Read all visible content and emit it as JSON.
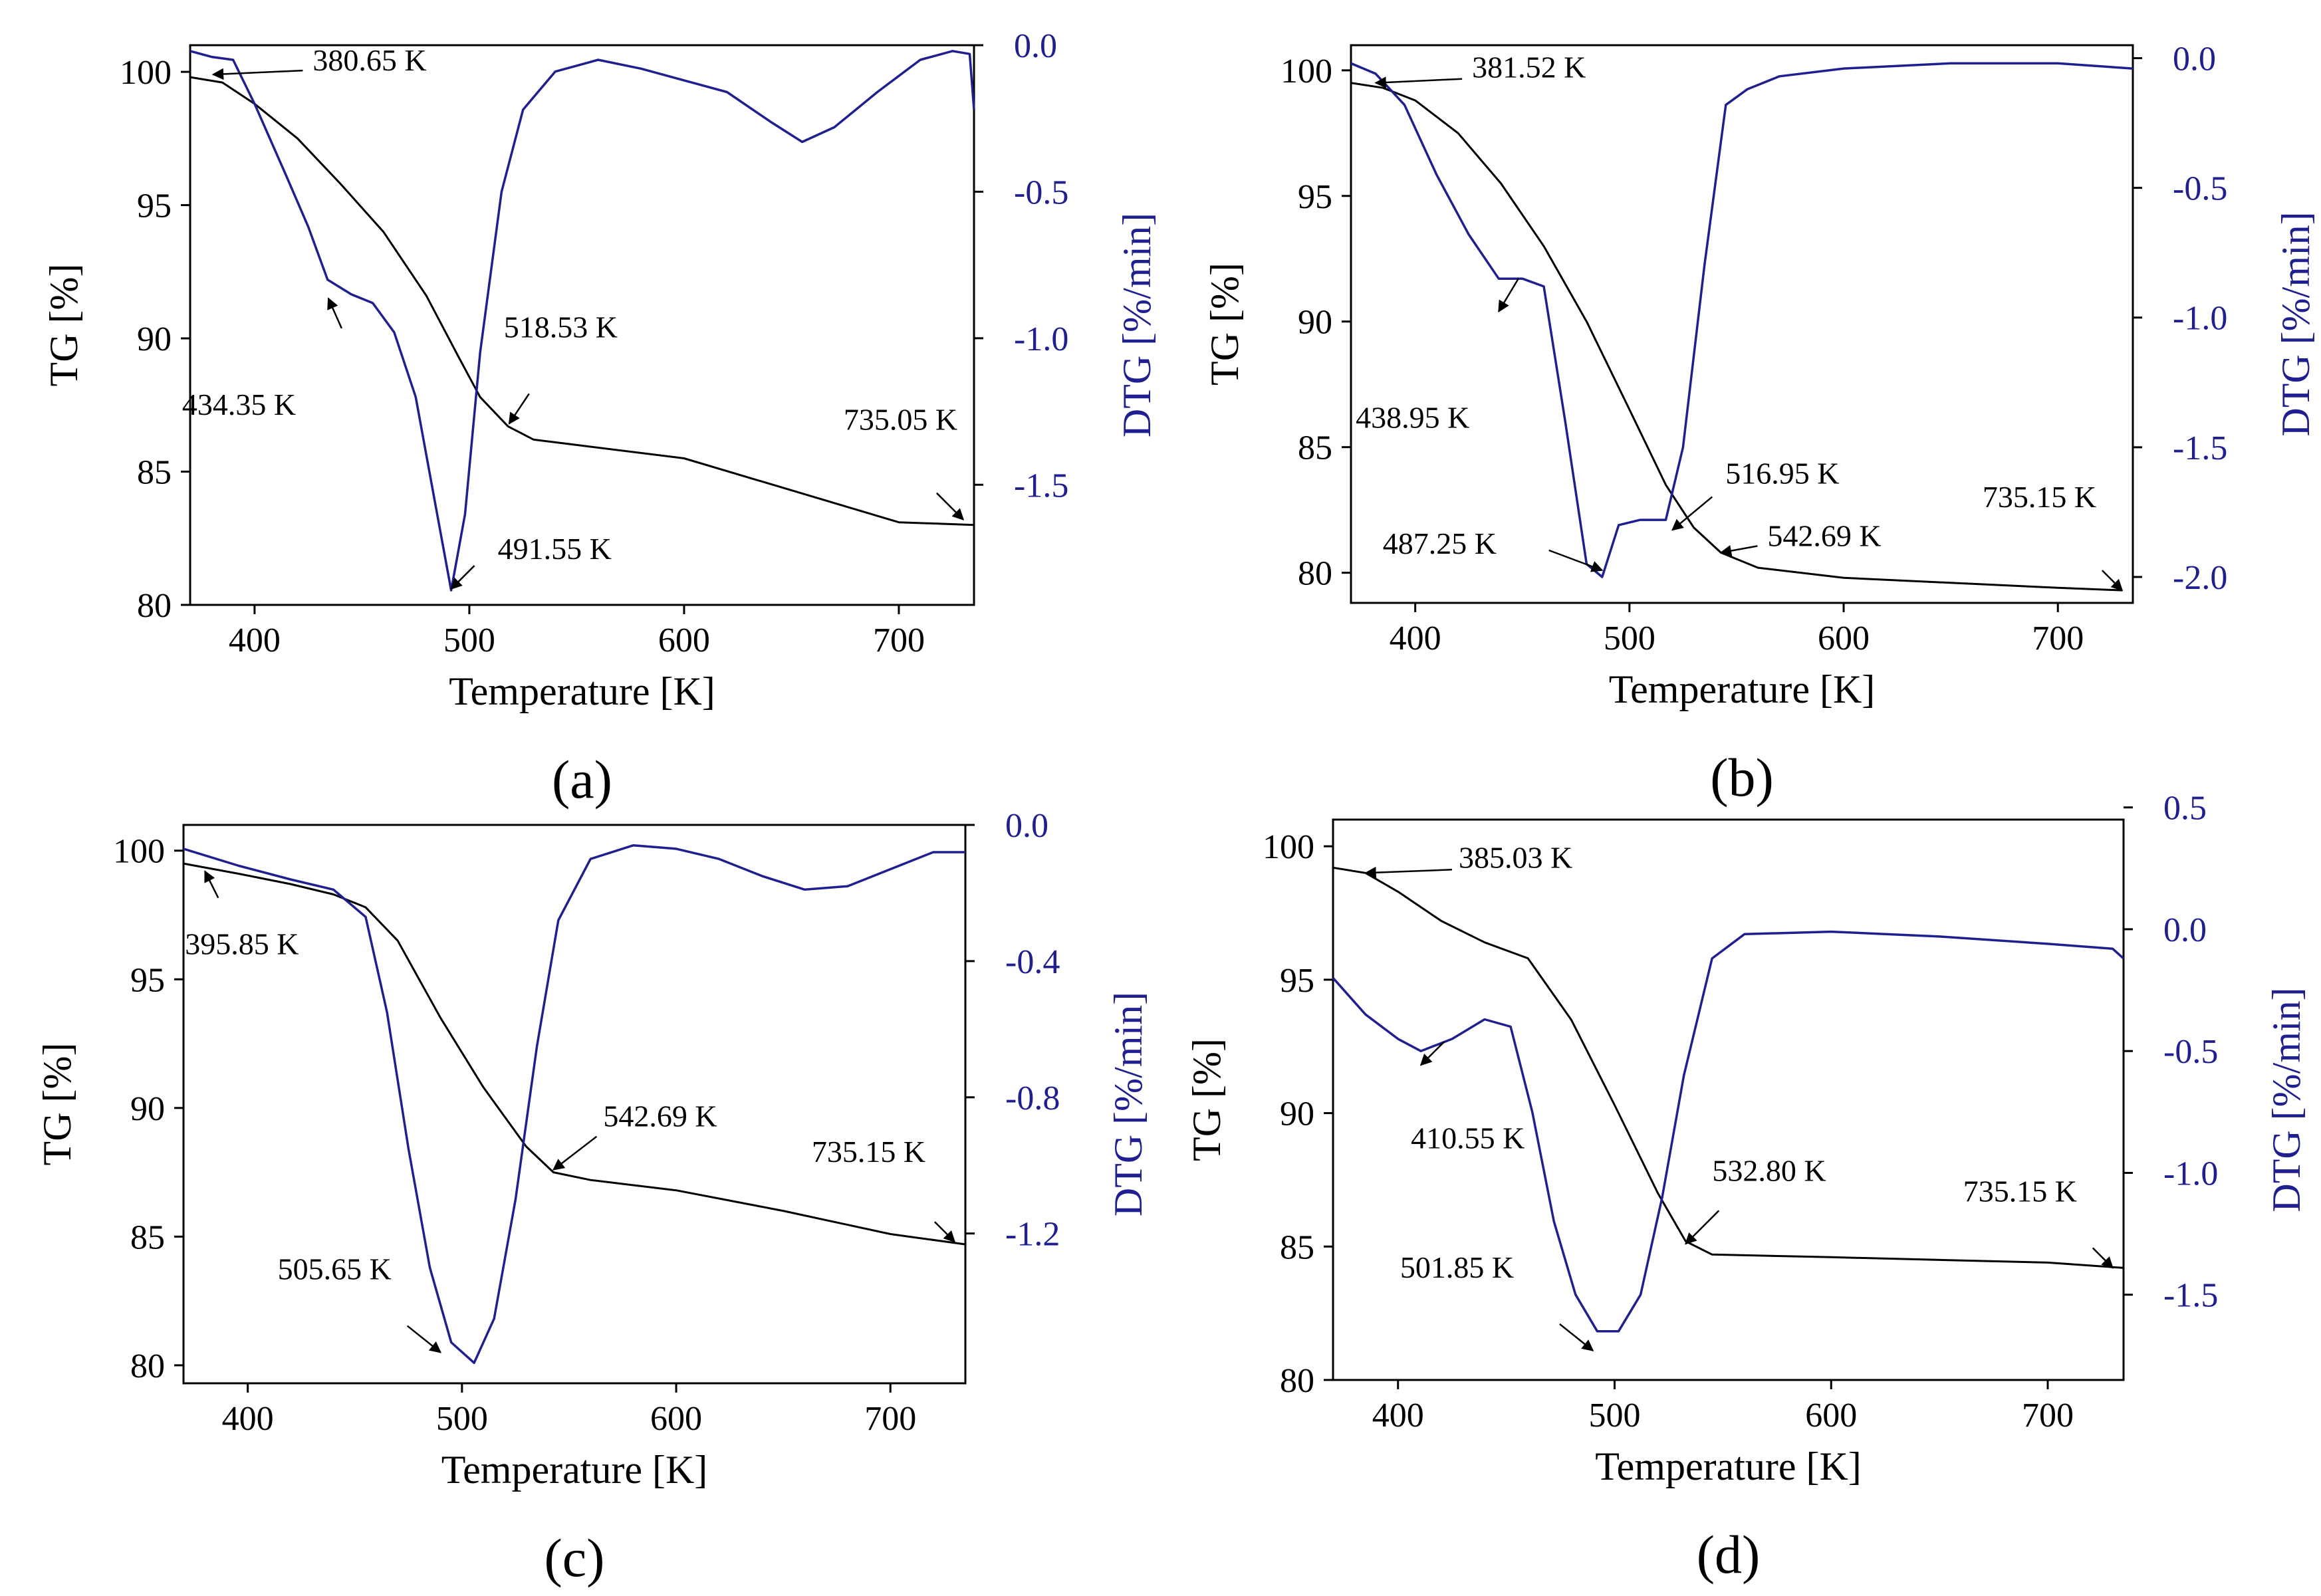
{
  "colors": {
    "tg": "#000000",
    "dtg": "#1f1f8f",
    "axis": "#000000"
  },
  "chart_data": [
    {
      "type": "line",
      "panel_label": "(a)",
      "xlabel": "Temperature [K]",
      "ylabel_left": "TG [%]",
      "ylabel_right": "DTG [%/min]",
      "xlim": [
        370,
        735
      ],
      "ylim_left": [
        80,
        101
      ],
      "ylim_right": [
        -1.91,
        0.0
      ],
      "xticks": [
        400,
        500,
        600,
        700
      ],
      "xtick_labels": [
        "400",
        "500",
        "600",
        "700"
      ],
      "yticks_left": [
        80,
        85,
        90,
        95,
        100
      ],
      "ytick_labels_left": [
        "80",
        "85",
        "90",
        "95",
        "100"
      ],
      "yticks_right": [
        -1.5,
        -1.0,
        -0.5,
        0.0
      ],
      "ytick_labels_right": [
        "-1.5",
        "-1.0",
        "-0.5",
        "0.0"
      ],
      "series": [
        {
          "name": "TG",
          "axis": "left",
          "x": [
            370,
            385,
            400,
            420,
            440,
            460,
            480,
            495,
            505,
            518,
            530,
            550,
            600,
            650,
            700,
            735
          ],
          "y": [
            99.8,
            99.6,
            98.8,
            97.5,
            95.8,
            94.0,
            91.6,
            89.3,
            87.8,
            86.7,
            86.2,
            86.0,
            85.5,
            84.3,
            83.1,
            83.0
          ]
        },
        {
          "name": "DTG",
          "axis": "right",
          "x": [
            370,
            380,
            390,
            400,
            415,
            425,
            434,
            445,
            455,
            465,
            475,
            485,
            491.55,
            498,
            505,
            515,
            525,
            540,
            560,
            580,
            600,
            620,
            640,
            655,
            670,
            690,
            710,
            725,
            733,
            735
          ],
          "y": [
            -0.02,
            -0.04,
            -0.05,
            -0.2,
            -0.45,
            -0.62,
            -0.8,
            -0.85,
            -0.88,
            -0.98,
            -1.2,
            -1.6,
            -1.86,
            -1.6,
            -1.05,
            -0.5,
            -0.22,
            -0.09,
            -0.05,
            -0.08,
            -0.12,
            -0.16,
            -0.26,
            -0.33,
            -0.28,
            -0.16,
            -0.05,
            -0.02,
            -0.03,
            -0.22
          ]
        }
      ],
      "annotations": [
        {
          "text": "380.65 K",
          "x": 380.65,
          "y": 99.9,
          "axis": "left"
        },
        {
          "text": "434.35 K",
          "x": 434.35,
          "y": 91.5,
          "axis": "left"
        },
        {
          "text": "518.53 K",
          "x": 518.53,
          "y": 86.8,
          "axis": "left"
        },
        {
          "text": "491.55 K",
          "x": 491.55,
          "y": 80.6,
          "axis": "left"
        },
        {
          "text": "735.05 K",
          "x": 730,
          "y": 83.2,
          "axis": "left"
        }
      ]
    },
    {
      "type": "line",
      "panel_label": "(b)",
      "xlabel": "Temperature [K]",
      "ylabel_left": "TG [%]",
      "ylabel_right": "DTG [%/min]",
      "xlim": [
        370,
        735
      ],
      "ylim_left": [
        78.8,
        101
      ],
      "ylim_right": [
        -2.1,
        0.05
      ],
      "xticks": [
        400,
        500,
        600,
        700
      ],
      "xtick_labels": [
        "400",
        "500",
        "600",
        "700"
      ],
      "yticks_left": [
        80,
        85,
        90,
        95,
        100
      ],
      "ytick_labels_left": [
        "80",
        "85",
        "90",
        "95",
        "100"
      ],
      "yticks_right": [
        -2.0,
        -1.5,
        -1.0,
        -0.5,
        0.0
      ],
      "ytick_labels_right": [
        "-2.0",
        "-1.5",
        "-1.0",
        "-0.5",
        "0.0"
      ],
      "series": [
        {
          "name": "TG",
          "axis": "left",
          "x": [
            370,
            385,
            400,
            420,
            440,
            460,
            480,
            500,
            516.95,
            530,
            542.69,
            560,
            600,
            650,
            700,
            730
          ],
          "y": [
            99.5,
            99.3,
            98.8,
            97.5,
            95.5,
            93.0,
            90.0,
            86.5,
            83.5,
            81.8,
            80.8,
            80.2,
            79.8,
            79.6,
            79.4,
            79.3
          ]
        },
        {
          "name": "DTG",
          "axis": "right",
          "x": [
            370,
            381.52,
            395,
            410,
            425,
            438.95,
            450,
            460,
            470,
            480,
            487.25,
            495,
            505,
            516.95,
            525,
            535,
            545,
            555,
            570,
            600,
            650,
            700,
            735
          ],
          "y": [
            -0.02,
            -0.06,
            -0.18,
            -0.45,
            -0.68,
            -0.85,
            -0.85,
            -0.88,
            -1.4,
            -1.95,
            -2.0,
            -1.8,
            -1.78,
            -1.78,
            -1.5,
            -0.8,
            -0.18,
            -0.12,
            -0.07,
            -0.04,
            -0.02,
            -0.02,
            -0.04
          ]
        }
      ],
      "annotations": [
        {
          "text": "381.52 K",
          "x": 381.52,
          "y": 99.5,
          "axis": "left"
        },
        {
          "text": "438.95 K",
          "x": 438.95,
          "y": 90.4,
          "axis": "left"
        },
        {
          "text": "516.95 K",
          "x": 520,
          "y": 81.7,
          "axis": "left"
        },
        {
          "text": "542.69 K",
          "x": 542.69,
          "y": 80.8,
          "axis": "left"
        },
        {
          "text": "487.25 K",
          "x": 487.25,
          "y": 80.1,
          "axis": "left"
        },
        {
          "text": "735.15 K",
          "x": 730,
          "y": 79.3,
          "axis": "left"
        }
      ]
    },
    {
      "type": "line",
      "panel_label": "(c)",
      "xlabel": "Temperature [K]",
      "ylabel_left": "TG [%]",
      "ylabel_right": "DTG [%/min]",
      "xlim": [
        370,
        735
      ],
      "ylim_left": [
        79.3,
        101
      ],
      "ylim_right": [
        -1.64,
        0.0
      ],
      "xticks": [
        400,
        500,
        600,
        700
      ],
      "xtick_labels": [
        "400",
        "500",
        "600",
        "700"
      ],
      "yticks_left": [
        80,
        85,
        90,
        95,
        100
      ],
      "ytick_labels_left": [
        "80",
        "85",
        "90",
        "95",
        "100"
      ],
      "yticks_right": [
        -1.2,
        -0.8,
        -0.4,
        0.0
      ],
      "ytick_labels_right": [
        "-1.2",
        "-0.8",
        "-0.4",
        "0.0"
      ],
      "series": [
        {
          "name": "TG",
          "axis": "left",
          "x": [
            370,
            395.85,
            420,
            440,
            455,
            470,
            490,
            510,
            530,
            542.69,
            560,
            600,
            650,
            700,
            735
          ],
          "y": [
            99.5,
            99.1,
            98.7,
            98.3,
            97.8,
            96.5,
            93.5,
            90.8,
            88.5,
            87.5,
            87.2,
            86.8,
            86.0,
            85.1,
            84.7
          ]
        },
        {
          "name": "DTG",
          "axis": "right",
          "x": [
            370,
            395.85,
            420,
            440,
            455,
            465,
            475,
            485,
            495,
            505.65,
            515,
            525,
            535,
            545,
            560,
            580,
            600,
            620,
            640,
            660,
            680,
            700,
            720,
            735
          ],
          "y": [
            -0.07,
            -0.12,
            -0.16,
            -0.19,
            -0.27,
            -0.55,
            -0.95,
            -1.3,
            -1.52,
            -1.58,
            -1.45,
            -1.1,
            -0.65,
            -0.28,
            -0.1,
            -0.06,
            -0.07,
            -0.1,
            -0.15,
            -0.19,
            -0.18,
            -0.13,
            -0.08,
            -0.08
          ]
        }
      ],
      "annotations": [
        {
          "text": "395.85 K",
          "x": 380,
          "y": 99.2,
          "axis": "left"
        },
        {
          "text": "542.69 K",
          "x": 542.69,
          "y": 87.6,
          "axis": "left"
        },
        {
          "text": "735.15 K",
          "x": 730,
          "y": 84.8,
          "axis": "left"
        },
        {
          "text": "505.65 K",
          "x": 490,
          "y": 80.5,
          "axis": "left"
        }
      ]
    },
    {
      "type": "line",
      "panel_label": "(d)",
      "xlabel": "Temperature [K]",
      "ylabel_left": "TG [%]",
      "ylabel_right": "DTG [%/min]",
      "xlim": [
        370,
        735
      ],
      "ylim_left": [
        80,
        101
      ],
      "ylim_right": [
        -1.85,
        0.45
      ],
      "xticks": [
        400,
        500,
        600,
        700
      ],
      "xtick_labels": [
        "400",
        "500",
        "600",
        "700"
      ],
      "yticks_left": [
        80,
        85,
        90,
        95,
        100
      ],
      "ytick_labels_left": [
        "80",
        "85",
        "90",
        "95",
        "100"
      ],
      "yticks_right": [
        -1.5,
        -1.0,
        -0.5,
        0.0,
        0.5
      ],
      "ytick_labels_right": [
        "-1.5",
        "-1.0",
        "-0.5",
        "0.0",
        "0.5"
      ],
      "series": [
        {
          "name": "TG",
          "axis": "left",
          "x": [
            370,
            385.03,
            400,
            420,
            440,
            460,
            480,
            500,
            520,
            532.8,
            545,
            600,
            650,
            700,
            735
          ],
          "y": [
            99.2,
            99.0,
            98.3,
            97.2,
            96.4,
            95.8,
            93.5,
            90.3,
            87.0,
            85.2,
            84.7,
            84.6,
            84.5,
            84.4,
            84.2
          ]
        },
        {
          "name": "DTG",
          "axis": "right",
          "x": [
            370,
            385,
            400,
            410.55,
            425,
            440,
            452,
            462,
            472,
            482,
            492,
            501.85,
            512,
            522,
            532,
            545,
            560,
            600,
            650,
            700,
            730,
            735
          ],
          "y": [
            -0.2,
            -0.35,
            -0.45,
            -0.5,
            -0.45,
            -0.37,
            -0.4,
            -0.75,
            -1.2,
            -1.5,
            -1.65,
            -1.65,
            -1.5,
            -1.1,
            -0.6,
            -0.12,
            -0.02,
            -0.01,
            -0.03,
            -0.06,
            -0.08,
            -0.12
          ]
        }
      ],
      "annotations": [
        {
          "text": "385.03 K",
          "x": 385.03,
          "y": 99.0,
          "axis": "left"
        },
        {
          "text": "410.55 K",
          "x": 410.55,
          "y": 91.8,
          "axis": "left"
        },
        {
          "text": "532.80 K",
          "x": 532.8,
          "y": 85.1,
          "axis": "left"
        },
        {
          "text": "735.15 K",
          "x": 730,
          "y": 84.2,
          "axis": "left"
        },
        {
          "text": "501.85 K",
          "x": 490,
          "y": 81.1,
          "axis": "left"
        }
      ]
    }
  ]
}
